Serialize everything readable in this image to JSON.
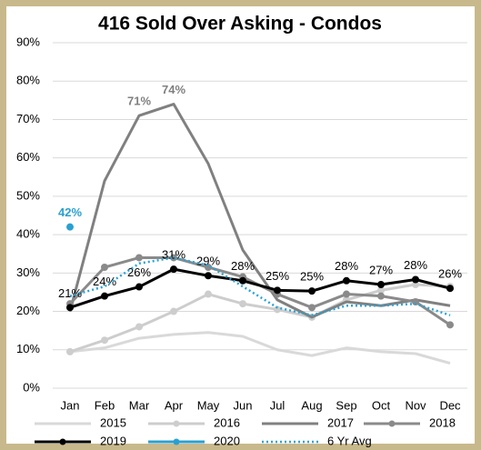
{
  "chart_data": {
    "type": "line",
    "title": "416 Sold Over Asking - Condos",
    "categories": [
      "Jan",
      "Feb",
      "Mar",
      "Apr",
      "May",
      "Jun",
      "Jul",
      "Aug",
      "Sep",
      "Oct",
      "Nov",
      "Dec"
    ],
    "ylim": [
      0,
      90
    ],
    "yticks": [
      {
        "value": 0,
        "label": "0%"
      },
      {
        "value": 10,
        "label": "10%"
      },
      {
        "value": 20,
        "label": "20%"
      },
      {
        "value": 30,
        "label": "30%"
      },
      {
        "value": 40,
        "label": "40%"
      },
      {
        "value": 50,
        "label": "50%"
      },
      {
        "value": 60,
        "label": "60%"
      },
      {
        "value": 70,
        "label": "70%"
      },
      {
        "value": 80,
        "label": "80%"
      },
      {
        "value": 90,
        "label": "90%"
      }
    ],
    "grid": true,
    "legend": "bottom",
    "series": [
      {
        "name": "2015",
        "color": "#d9d9d9",
        "markers": false,
        "dash": false,
        "values": [
          9.5,
          10.5,
          13,
          14,
          14.5,
          13.5,
          10,
          8.5,
          10.5,
          9.5,
          9,
          6.5
        ]
      },
      {
        "name": "2016",
        "color": "#cdcdcd",
        "markers": true,
        "dash": false,
        "values": [
          9.5,
          12.5,
          16,
          20,
          24.5,
          22,
          20.5,
          18.5,
          23,
          25.5,
          27,
          26.5
        ]
      },
      {
        "name": "2017",
        "color": "#808080",
        "markers": false,
        "dash": false,
        "values": [
          20,
          54,
          71,
          74,
          58.5,
          36,
          23,
          18.5,
          22.5,
          21.5,
          23,
          21.5
        ],
        "value_labels": [
          null,
          null,
          "71%",
          "74%",
          null,
          null,
          null,
          null,
          null,
          null,
          null,
          null
        ]
      },
      {
        "name": "2018",
        "color": "#8a8a8a",
        "markers": true,
        "dash": false,
        "values": [
          22,
          31.5,
          34,
          34,
          31.5,
          29,
          24.5,
          21,
          24.5,
          24,
          22.5,
          16.5
        ]
      },
      {
        "name": "2019",
        "color": "#000000",
        "markers": true,
        "dash": false,
        "values": [
          21,
          24,
          26.4,
          31,
          29.3,
          28,
          25.5,
          25.3,
          28,
          27,
          28.3,
          26
        ],
        "value_labels": [
          "21%",
          "24%",
          "26%",
          "31%",
          "29%",
          "28%",
          "25%",
          "25%",
          "28%",
          "27%",
          "28%",
          "26%"
        ]
      },
      {
        "name": "2020",
        "color": "#2aa0d0",
        "markers": true,
        "dash": false,
        "values": [
          42,
          null,
          null,
          null,
          null,
          null,
          null,
          null,
          null,
          null,
          null,
          null
        ],
        "value_labels": [
          "42%",
          null,
          null,
          null,
          null,
          null,
          null,
          null,
          null,
          null,
          null,
          null
        ]
      },
      {
        "name": "6 Yr Avg",
        "color": "#29a3d6",
        "markers": false,
        "dash": true,
        "values": [
          24,
          26.5,
          32.5,
          34,
          32,
          26.5,
          21,
          19,
          21.5,
          21.5,
          22,
          19
        ]
      }
    ]
  }
}
